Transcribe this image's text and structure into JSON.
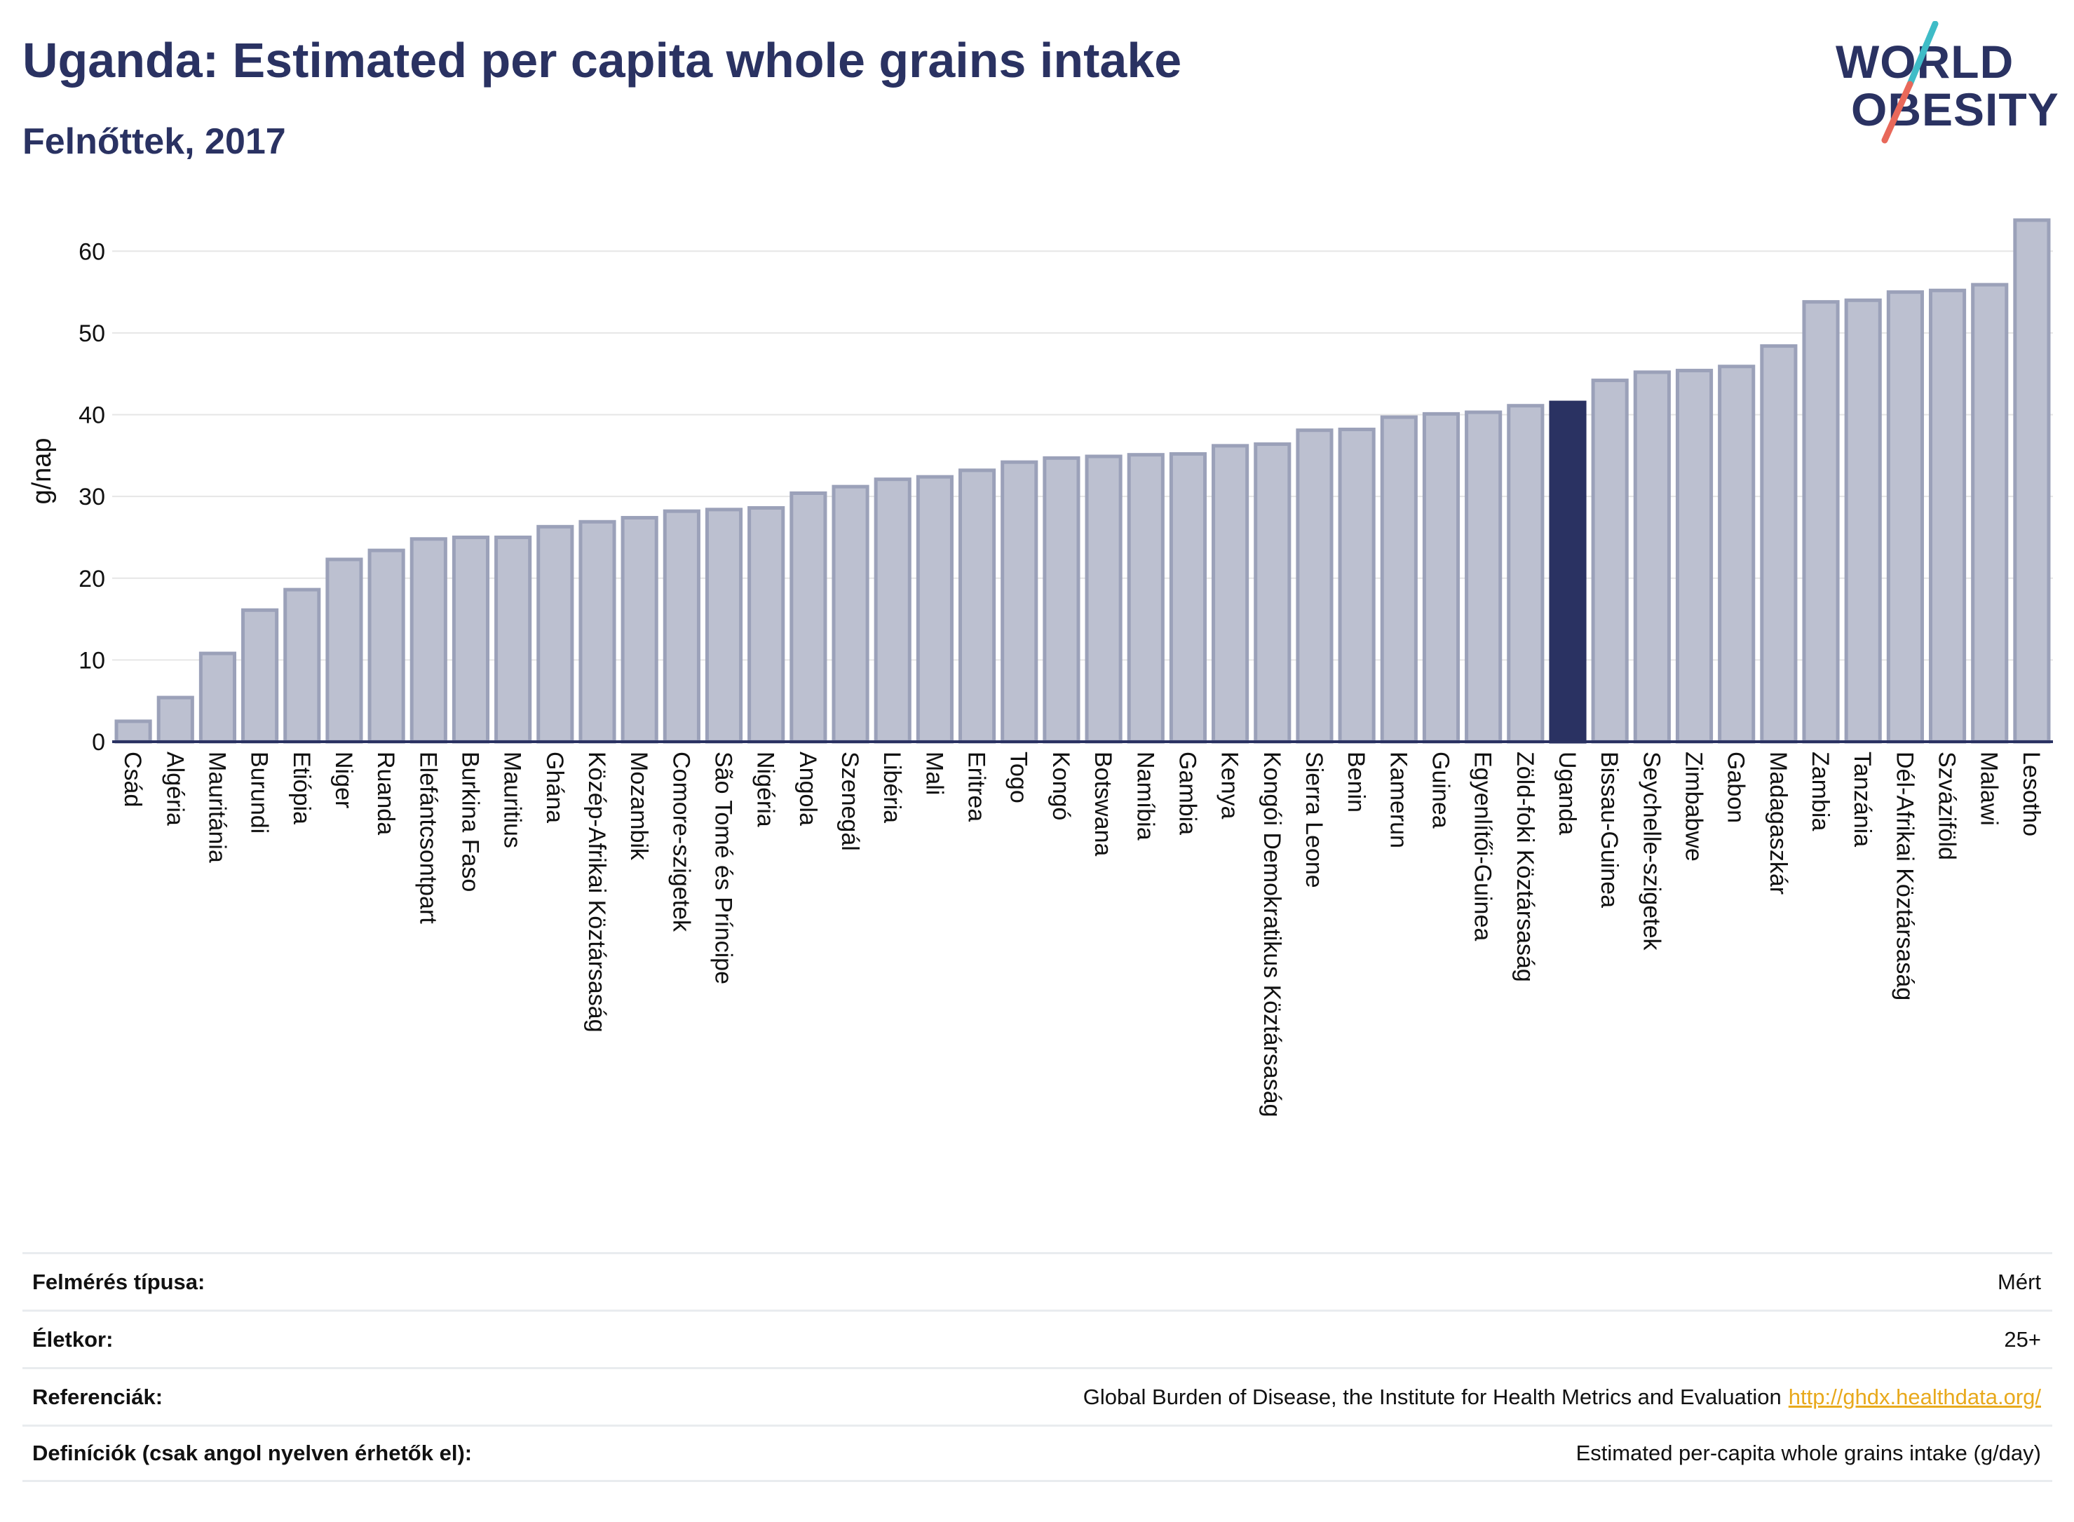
{
  "header": {
    "title": "Uganda: Estimated per capita whole grains intake",
    "subtitle": "Felnőttek, 2017"
  },
  "logo": {
    "line1": "WORLD",
    "line2": "OBESITY",
    "slash_color_top": "#3fbcc7",
    "slash_color_bottom": "#e8685a"
  },
  "colors": {
    "bar": "#bcc0d0",
    "bar_stroke": "#9ba1b9",
    "highlight": "#2a3262",
    "axis": "#2a3262",
    "grid": "#e6e6e6",
    "text": "#2a3262"
  },
  "chart_data": {
    "type": "bar",
    "ylabel": "g/nap",
    "ylim": [
      0,
      65
    ],
    "yticks": [
      0,
      10,
      20,
      30,
      40,
      50,
      60
    ],
    "grid": true,
    "highlight": "Uganda",
    "categories": [
      "Csád",
      "Algéria",
      "Mauritánia",
      "Burundi",
      "Etiópia",
      "Niger",
      "Ruanda",
      "Elefántcsontpart",
      "Burkina Faso",
      "Mauritius",
      "Ghána",
      "Közép-Afrikai Köztársaság",
      "Mozambik",
      "Comore-szigetek",
      "São Tomé és Príncipe",
      "Nigéria",
      "Angola",
      "Szenegál",
      "Libéria",
      "Mali",
      "Eritrea",
      "Togo",
      "Kongó",
      "Botswana",
      "Namíbia",
      "Gambia",
      "Kenya",
      "Kongói Demokratikus Köztársaság",
      "Sierra Leone",
      "Benin",
      "Kamerun",
      "Guinea",
      "Egyenlítői-Guinea",
      "Zöld-foki Köztársaság",
      "Uganda",
      "Bissau-Guinea",
      "Seychelle-szigetek",
      "Zimbabwe",
      "Gabon",
      "Madagaszkár",
      "Zambia",
      "Tanzánia",
      "Dél-Afrikai Köztársaság",
      "Szváziföld",
      "Malawi",
      "Lesotho"
    ],
    "values": [
      2.5,
      5.4,
      10.8,
      16.1,
      18.6,
      22.3,
      23.4,
      24.8,
      25.0,
      25.0,
      26.3,
      26.9,
      27.4,
      28.2,
      28.4,
      28.6,
      30.4,
      31.2,
      32.1,
      32.4,
      33.2,
      34.2,
      34.7,
      34.9,
      35.1,
      35.2,
      36.2,
      36.4,
      38.1,
      38.2,
      39.7,
      40.1,
      40.3,
      41.1,
      41.5,
      44.2,
      45.2,
      45.4,
      45.9,
      48.4,
      53.8,
      54.0,
      55.0,
      55.2,
      55.9,
      63.8
    ]
  },
  "info_table": [
    {
      "label": "Felmérés típusa:",
      "value": "Mért"
    },
    {
      "label": "Életkor:",
      "value": "25+"
    },
    {
      "label": "Referenciák:",
      "value": "Global Burden of Disease, the Institute for Health Metrics and Evaluation",
      "link": "http://ghdx.healthdata.org/"
    },
    {
      "label": "Definíciók (csak angol nyelven érhetők el):",
      "value": "Estimated per-capita whole grains intake (g/day)"
    }
  ]
}
